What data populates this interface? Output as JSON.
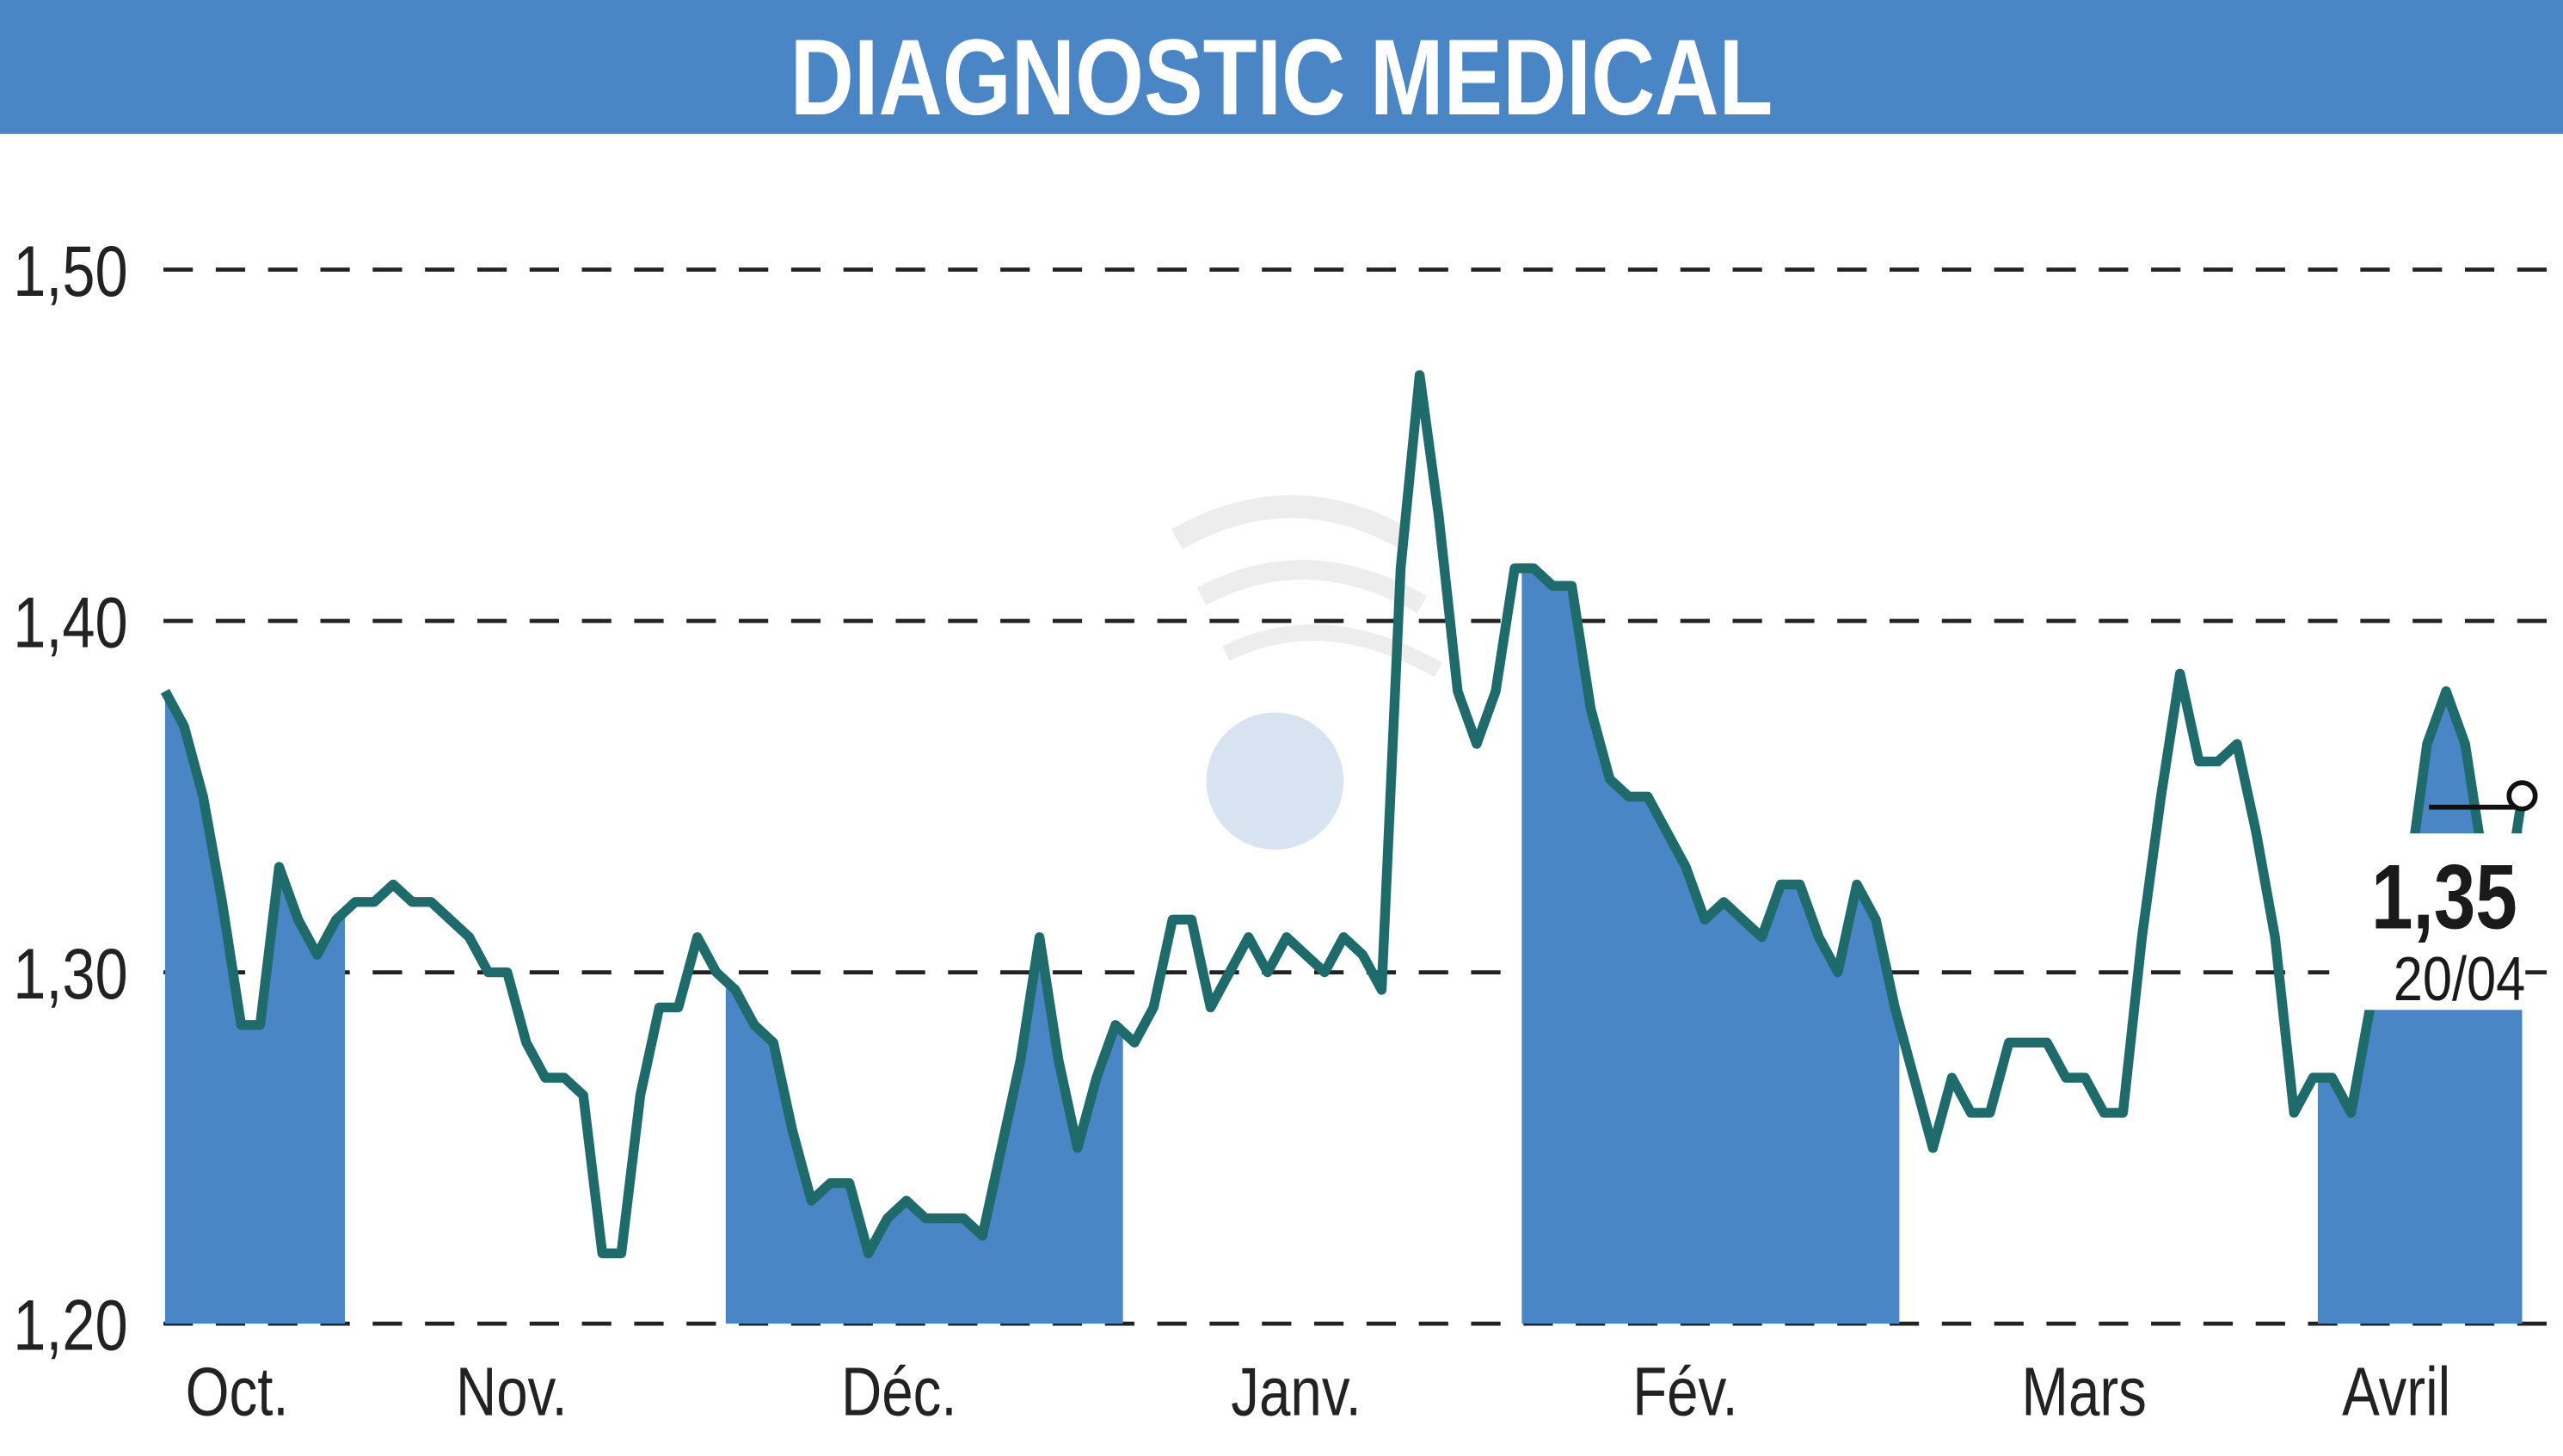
{
  "chart_data": {
    "type": "line",
    "title": "DIAGNOSTIC MEDICAL",
    "xlabel": "",
    "ylabel": "",
    "ylim": [
      1.2,
      1.5
    ],
    "yticks": [
      {
        "value": 1.5,
        "label": "1,50"
      },
      {
        "value": 1.4,
        "label": "1,40"
      },
      {
        "value": 1.3,
        "label": "1,30"
      },
      {
        "value": 1.2,
        "label": "1,20"
      }
    ],
    "months": [
      "Oct.",
      "Nov.",
      "Déc.",
      "Janv.",
      "Fév.",
      "Mars",
      "Avril"
    ],
    "grid": "horizontal dashed",
    "last_value": {
      "label": "1,35",
      "date": "20/04",
      "value": 1.35
    },
    "values": [
      1.38,
      1.37,
      1.35,
      1.32,
      1.285,
      1.285,
      1.33,
      1.315,
      1.305,
      1.315,
      1.32,
      1.32,
      1.325,
      1.32,
      1.32,
      1.315,
      1.31,
      1.3,
      1.3,
      1.28,
      1.27,
      1.27,
      1.265,
      1.22,
      1.22,
      1.265,
      1.29,
      1.29,
      1.31,
      1.3,
      1.295,
      1.285,
      1.28,
      1.255,
      1.235,
      1.24,
      1.24,
      1.22,
      1.23,
      1.235,
      1.23,
      1.23,
      1.23,
      1.225,
      1.25,
      1.275,
      1.31,
      1.275,
      1.25,
      1.27,
      1.285,
      1.28,
      1.29,
      1.315,
      1.315,
      1.29,
      1.3,
      1.31,
      1.3,
      1.31,
      1.305,
      1.3,
      1.31,
      1.305,
      1.295,
      1.415,
      1.47,
      1.43,
      1.38,
      1.365,
      1.38,
      1.415,
      1.415,
      1.41,
      1.41,
      1.375,
      1.355,
      1.35,
      1.35,
      1.34,
      1.33,
      1.315,
      1.32,
      1.315,
      1.31,
      1.325,
      1.325,
      1.31,
      1.3,
      1.325,
      1.315,
      1.29,
      1.27,
      1.25,
      1.27,
      1.26,
      1.26,
      1.28,
      1.28,
      1.28,
      1.27,
      1.27,
      1.26,
      1.26,
      1.31,
      1.35,
      1.385,
      1.36,
      1.36,
      1.365,
      1.34,
      1.31,
      1.26,
      1.27,
      1.27,
      1.26,
      1.29,
      1.3,
      1.325,
      1.365,
      1.38,
      1.365,
      1.33,
      1.315,
      1.35
    ]
  },
  "colors": {
    "header": "#4a86c5",
    "fill": "#4a86c5",
    "line": "#1f6b6b",
    "grid": "#222222"
  }
}
